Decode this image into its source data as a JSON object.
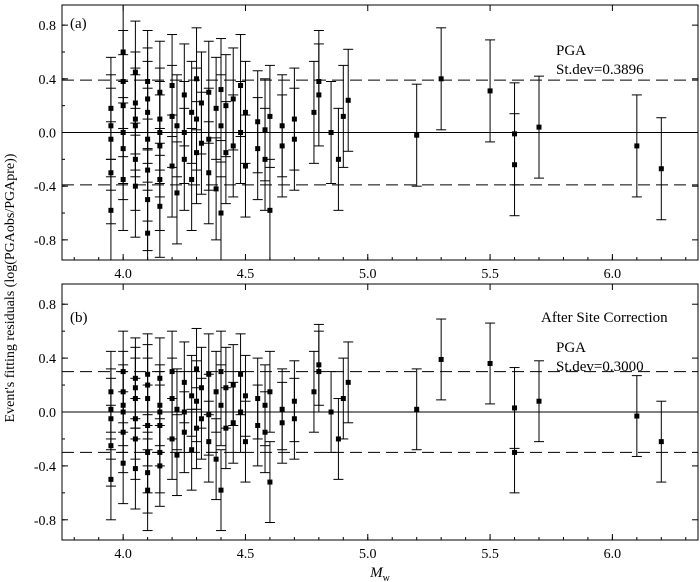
{
  "figure": {
    "ylabel": "Event's fitting residuals (log(PGAobs/PGApre))",
    "xlabel_main": "M",
    "xlabel_sub": "w",
    "colors": {
      "axis": "#000000",
      "marker": "#000000",
      "background": "#ffffff"
    }
  },
  "chart_data": [
    {
      "type": "scatter",
      "panel_label": "(a)",
      "annotation": "",
      "stat_label": "PGA",
      "stdev_label": "St.dev=0.3896",
      "xlim": [
        3.75,
        6.35
      ],
      "ylim": [
        -0.95,
        0.95
      ],
      "xticks": [
        4.0,
        4.5,
        5.0,
        5.5,
        6.0
      ],
      "xtick_labels": [
        "4.0",
        "4.5",
        "5.0",
        "5.5",
        "6.0"
      ],
      "yticks": [
        0.8,
        0.4,
        0.0,
        -0.4,
        -0.8
      ],
      "ytick_labels": [
        "0.8",
        "0.4",
        "0.0",
        "-0.4",
        "-0.8"
      ],
      "zero_line": 0.0,
      "stdev_lines": [
        0.39,
        -0.39
      ],
      "errorbar_halfwidth": 0.38,
      "x": [
        3.95,
        3.95,
        3.95,
        3.95,
        3.95,
        4.0,
        4.0,
        4.0,
        4.0,
        4.0,
        4.0,
        4.05,
        4.05,
        4.05,
        4.05,
        4.05,
        4.05,
        4.1,
        4.1,
        4.1,
        4.1,
        4.1,
        4.1,
        4.1,
        4.15,
        4.15,
        4.15,
        4.15,
        4.15,
        4.15,
        4.2,
        4.2,
        4.2,
        4.22,
        4.22,
        4.25,
        4.25,
        4.25,
        4.28,
        4.28,
        4.3,
        4.3,
        4.3,
        4.32,
        4.32,
        4.35,
        4.35,
        4.35,
        4.38,
        4.38,
        4.4,
        4.4,
        4.4,
        4.42,
        4.42,
        4.45,
        4.45,
        4.48,
        4.48,
        4.5,
        4.5,
        4.55,
        4.55,
        4.58,
        4.58,
        4.6,
        4.6,
        4.65,
        4.65,
        4.7,
        4.7,
        4.78,
        4.8,
        4.8,
        4.85,
        4.88,
        4.9,
        4.92,
        5.2,
        5.3,
        5.5,
        5.6,
        5.6,
        5.7,
        6.1,
        6.2
      ],
      "y": [
        0.18,
        -0.05,
        -0.3,
        -0.58,
        0.05,
        0.6,
        0.38,
        0.2,
        -0.12,
        -0.35,
        0.0,
        0.45,
        0.22,
        0.05,
        -0.2,
        -0.4,
        0.1,
        -0.75,
        0.38,
        0.15,
        -0.05,
        -0.28,
        -0.5,
        0.25,
        0.3,
        0.1,
        -0.1,
        -0.35,
        -0.55,
        0.0,
        0.35,
        0.12,
        -0.25,
        0.05,
        -0.45,
        0.28,
        0.0,
        -0.2,
        0.15,
        -0.35,
        0.4,
        0.1,
        -0.15,
        0.22,
        -0.08,
        0.3,
        -0.05,
        -0.3,
        0.18,
        -0.42,
        0.32,
        0.05,
        -0.6,
        0.2,
        -0.15,
        0.25,
        -0.1,
        0.35,
        0.0,
        0.15,
        -0.25,
        0.08,
        -0.12,
        0.02,
        -0.2,
        0.12,
        -0.58,
        0.05,
        -0.1,
        0.1,
        -0.05,
        0.15,
        0.28,
        0.38,
        0.0,
        -0.2,
        0.12,
        0.24,
        -0.02,
        0.4,
        0.31,
        -0.01,
        -0.24,
        0.04,
        -0.1,
        -0.27
      ]
    },
    {
      "type": "scatter",
      "panel_label": "(b)",
      "annotation": "After Site Correction",
      "stat_label": "PGA",
      "stdev_label": "St.dev=0.3000",
      "xlim": [
        3.75,
        6.35
      ],
      "ylim": [
        -0.95,
        0.95
      ],
      "xticks": [
        4.0,
        4.5,
        5.0,
        5.5,
        6.0
      ],
      "xtick_labels": [
        "4.0",
        "4.5",
        "5.0",
        "5.5",
        "6.0"
      ],
      "yticks": [
        0.8,
        0.4,
        0.0,
        -0.4,
        -0.8
      ],
      "ytick_labels": [
        "0.8",
        "0.4",
        "0.0",
        "-0.4",
        "-0.8"
      ],
      "zero_line": 0.0,
      "stdev_lines": [
        0.3,
        -0.3
      ],
      "errorbar_halfwidth": 0.3,
      "x": [
        3.95,
        3.95,
        3.95,
        3.95,
        3.95,
        4.0,
        4.0,
        4.0,
        4.0,
        4.0,
        4.0,
        4.05,
        4.05,
        4.05,
        4.05,
        4.05,
        4.05,
        4.1,
        4.1,
        4.1,
        4.1,
        4.1,
        4.1,
        4.1,
        4.15,
        4.15,
        4.15,
        4.15,
        4.15,
        4.15,
        4.2,
        4.2,
        4.2,
        4.22,
        4.22,
        4.25,
        4.25,
        4.25,
        4.28,
        4.28,
        4.3,
        4.3,
        4.3,
        4.32,
        4.32,
        4.35,
        4.35,
        4.35,
        4.38,
        4.38,
        4.4,
        4.4,
        4.4,
        4.42,
        4.42,
        4.45,
        4.45,
        4.48,
        4.48,
        4.5,
        4.5,
        4.55,
        4.55,
        4.58,
        4.58,
        4.6,
        4.6,
        4.65,
        4.65,
        4.7,
        4.7,
        4.78,
        4.8,
        4.8,
        4.85,
        4.88,
        4.9,
        4.92,
        5.2,
        5.3,
        5.5,
        5.6,
        5.6,
        5.7,
        6.1,
        6.2
      ],
      "y": [
        0.15,
        -0.05,
        -0.25,
        -0.5,
        0.02,
        0.3,
        0.15,
        0.0,
        -0.15,
        -0.38,
        0.05,
        0.25,
        0.1,
        -0.05,
        -0.2,
        -0.42,
        0.18,
        -0.58,
        0.28,
        0.1,
        -0.1,
        -0.3,
        -0.45,
        0.2,
        0.25,
        0.05,
        -0.1,
        -0.3,
        -0.4,
        0.0,
        0.3,
        0.1,
        -0.2,
        0.02,
        -0.32,
        0.22,
        0.0,
        -0.15,
        0.12,
        -0.28,
        0.32,
        0.08,
        -0.12,
        0.18,
        -0.05,
        0.28,
        -0.02,
        -0.22,
        0.15,
        -0.35,
        0.3,
        0.05,
        -0.58,
        0.18,
        -0.12,
        0.2,
        -0.08,
        0.28,
        0.0,
        0.12,
        -0.22,
        0.1,
        -0.1,
        0.05,
        -0.15,
        0.15,
        -0.52,
        0.02,
        -0.08,
        0.08,
        -0.05,
        0.15,
        0.3,
        0.35,
        0.0,
        -0.2,
        0.1,
        0.22,
        0.02,
        0.39,
        0.36,
        0.03,
        -0.3,
        0.08,
        -0.03,
        -0.22
      ]
    }
  ]
}
